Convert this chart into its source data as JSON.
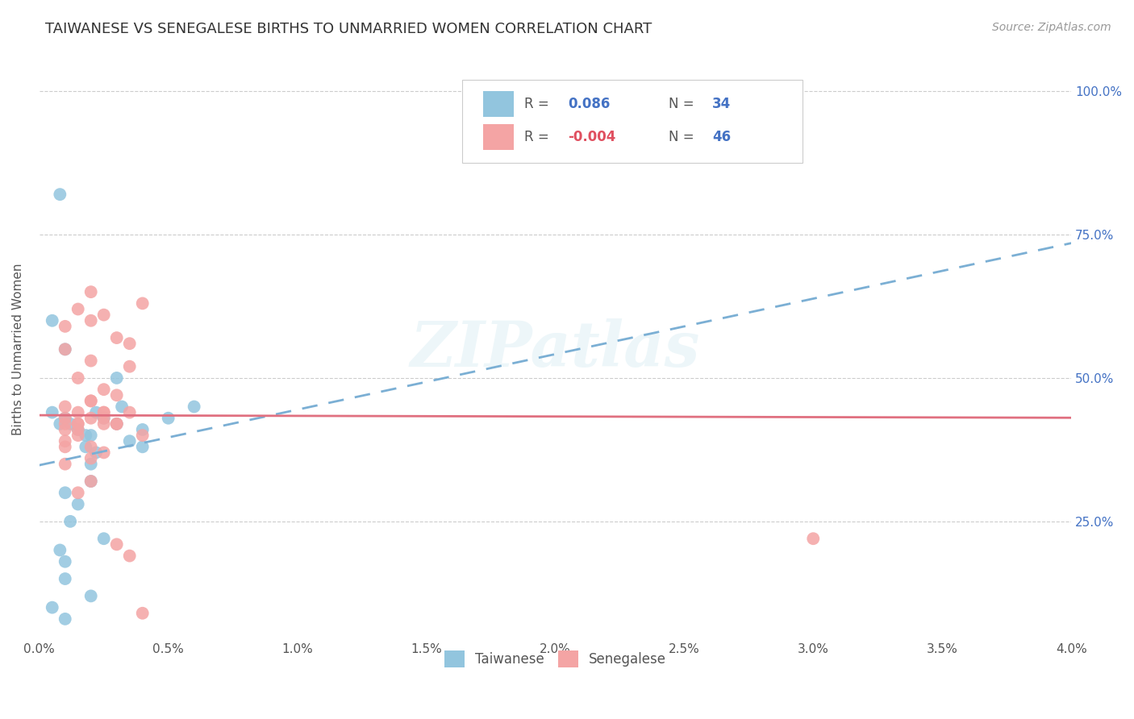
{
  "title": "TAIWANESE VS SENEGALESE BIRTHS TO UNMARRIED WOMEN CORRELATION CHART",
  "source": "Source: ZipAtlas.com",
  "ylabel": "Births to Unmarried Women",
  "xlim": [
    0.0,
    0.04
  ],
  "ylim": [
    0.05,
    1.05
  ],
  "xtick_labels": [
    "0.0%",
    "0.5%",
    "1.0%",
    "1.5%",
    "2.0%",
    "2.5%",
    "3.0%",
    "3.5%",
    "4.0%"
  ],
  "xtick_values": [
    0.0,
    0.005,
    0.01,
    0.015,
    0.02,
    0.025,
    0.03,
    0.035,
    0.04
  ],
  "ytick_labels": [
    "25.0%",
    "50.0%",
    "75.0%",
    "100.0%"
  ],
  "ytick_values": [
    0.25,
    0.5,
    0.75,
    1.0
  ],
  "taiwanese_color": "#92C5DE",
  "senegalese_color": "#F4A4A4",
  "trend_taiwanese_color": "#7BAFD4",
  "trend_senegalese_color": "#E07080",
  "R_taiwanese": 0.086,
  "N_taiwanese": 34,
  "R_senegalese": -0.004,
  "N_senegalese": 46,
  "legend_color": "#4472C4",
  "grid_color": "#CCCCCC",
  "background_color": "#FFFFFF",
  "taiwanese_x": [
    0.0008,
    0.0005,
    0.001,
    0.0005,
    0.0008,
    0.001,
    0.0012,
    0.0015,
    0.0018,
    0.002,
    0.0022,
    0.0025,
    0.003,
    0.0032,
    0.0035,
    0.004,
    0.004,
    0.005,
    0.006,
    0.001,
    0.0015,
    0.002,
    0.0008,
    0.0012,
    0.002,
    0.001,
    0.0018,
    0.0022,
    0.003,
    0.0005,
    0.001,
    0.0025,
    0.001,
    0.002
  ],
  "taiwanese_y": [
    0.82,
    0.1,
    0.08,
    0.44,
    0.42,
    0.43,
    0.42,
    0.41,
    0.4,
    0.4,
    0.44,
    0.43,
    0.42,
    0.45,
    0.39,
    0.38,
    0.41,
    0.43,
    0.45,
    0.3,
    0.28,
    0.32,
    0.2,
    0.25,
    0.35,
    0.18,
    0.38,
    0.37,
    0.5,
    0.6,
    0.55,
    0.22,
    0.15,
    0.12
  ],
  "senegalese_x": [
    0.001,
    0.0015,
    0.002,
    0.0025,
    0.003,
    0.0035,
    0.004,
    0.001,
    0.0015,
    0.002,
    0.0025,
    0.003,
    0.0035,
    0.001,
    0.0015,
    0.002,
    0.0025,
    0.003,
    0.001,
    0.0015,
    0.002,
    0.0025,
    0.001,
    0.002,
    0.0025,
    0.001,
    0.0015,
    0.0025,
    0.001,
    0.002,
    0.0015,
    0.003,
    0.0035,
    0.004,
    0.002,
    0.001,
    0.0015,
    0.002,
    0.0025,
    0.003,
    0.0035,
    0.004,
    0.001,
    0.03,
    0.0015,
    0.002
  ],
  "senegalese_y": [
    0.42,
    0.44,
    0.6,
    0.61,
    0.57,
    0.56,
    0.63,
    0.55,
    0.5,
    0.53,
    0.48,
    0.47,
    0.52,
    0.45,
    0.41,
    0.46,
    0.44,
    0.42,
    0.38,
    0.4,
    0.36,
    0.37,
    0.35,
    0.43,
    0.42,
    0.43,
    0.42,
    0.44,
    0.39,
    0.32,
    0.3,
    0.21,
    0.19,
    0.4,
    0.46,
    0.59,
    0.62,
    0.65,
    0.43,
    0.42,
    0.44,
    0.09,
    0.41,
    0.22,
    0.42,
    0.38
  ],
  "watermark_text": "ZIPatlas",
  "title_fontsize": 13,
  "axis_label_fontsize": 11,
  "tick_fontsize": 11,
  "source_fontsize": 10
}
